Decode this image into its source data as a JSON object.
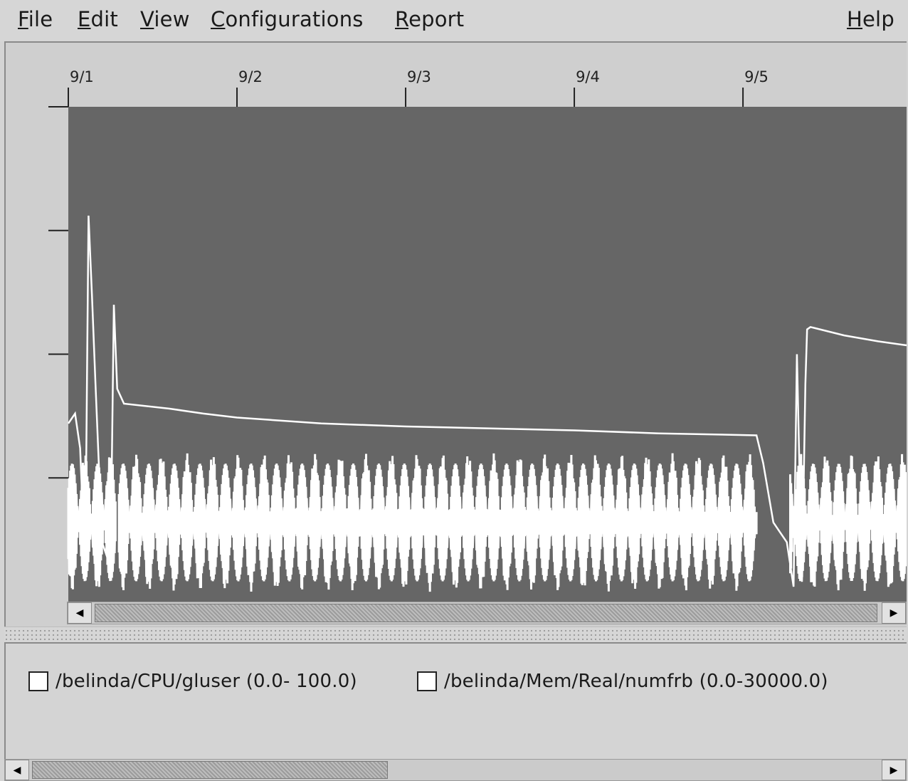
{
  "menu": {
    "file": {
      "mnemonic": "F",
      "rest": "ile"
    },
    "edit": {
      "mnemonic": "E",
      "rest": "dit"
    },
    "view": {
      "mnemonic": "V",
      "rest": "iew"
    },
    "configurations": {
      "mnemonic": "C",
      "rest": "onfigurations"
    },
    "report": {
      "mnemonic": "R",
      "rest": "eport"
    },
    "help": {
      "mnemonic": "H",
      "rest": "elp"
    }
  },
  "chart_data": {
    "type": "line",
    "title": "",
    "xlabel": "",
    "ylabel": "",
    "x_ticks": [
      "9/1",
      "9/2",
      "9/3",
      "9/4",
      "9/5"
    ],
    "x_range_days": [
      1.0,
      5.97
    ],
    "y_range": [
      0,
      100
    ],
    "y_tick_labels_shown": false,
    "plot_background": "#666666",
    "line_color": "#ffffff",
    "series": [
      {
        "name": "/belinda/CPU/gluser (0.0- 100.0)",
        "description_pattern": "oscillating",
        "cycles_per_day": 6.6,
        "low": 2,
        "high": 30,
        "active_x": [
          [
            1.0,
            1.28
          ],
          [
            1.3,
            5.08
          ],
          [
            5.28,
            5.97
          ]
        ]
      },
      {
        "name": "/belinda/Mem/Real/numfrb (0.0-30000.0)",
        "points": [
          [
            1.0,
            36
          ],
          [
            1.04,
            38
          ],
          [
            1.07,
            31
          ],
          [
            1.1,
            6
          ],
          [
            1.12,
            78
          ],
          [
            1.14,
            62
          ],
          [
            1.16,
            45
          ],
          [
            1.2,
            12
          ],
          [
            1.25,
            7
          ],
          [
            1.27,
            60
          ],
          [
            1.29,
            43
          ],
          [
            1.33,
            40
          ],
          [
            1.6,
            39
          ],
          [
            1.8,
            38
          ],
          [
            2.0,
            37.2
          ],
          [
            2.5,
            36
          ],
          [
            3.0,
            35.4
          ],
          [
            3.5,
            35
          ],
          [
            4.0,
            34.6
          ],
          [
            4.5,
            34
          ],
          [
            5.08,
            33.6
          ],
          [
            5.12,
            28
          ],
          [
            5.18,
            16
          ],
          [
            5.22,
            14
          ],
          [
            5.26,
            12
          ],
          [
            5.3,
            3
          ],
          [
            5.32,
            50
          ],
          [
            5.35,
            4
          ],
          [
            5.37,
            44
          ],
          [
            5.38,
            55
          ],
          [
            5.4,
            55.5
          ],
          [
            5.6,
            53.8
          ],
          [
            5.8,
            52.6
          ],
          [
            5.97,
            51.8
          ]
        ]
      }
    ],
    "legend": {
      "placement": "bottom",
      "entries": [
        {
          "label": "/belinda/CPU/gluser (0.0- 100.0)",
          "checked": false
        },
        {
          "label": "/belinda/Mem/Real/numfrb (0.0-30000.0)",
          "checked": false
        }
      ]
    }
  }
}
